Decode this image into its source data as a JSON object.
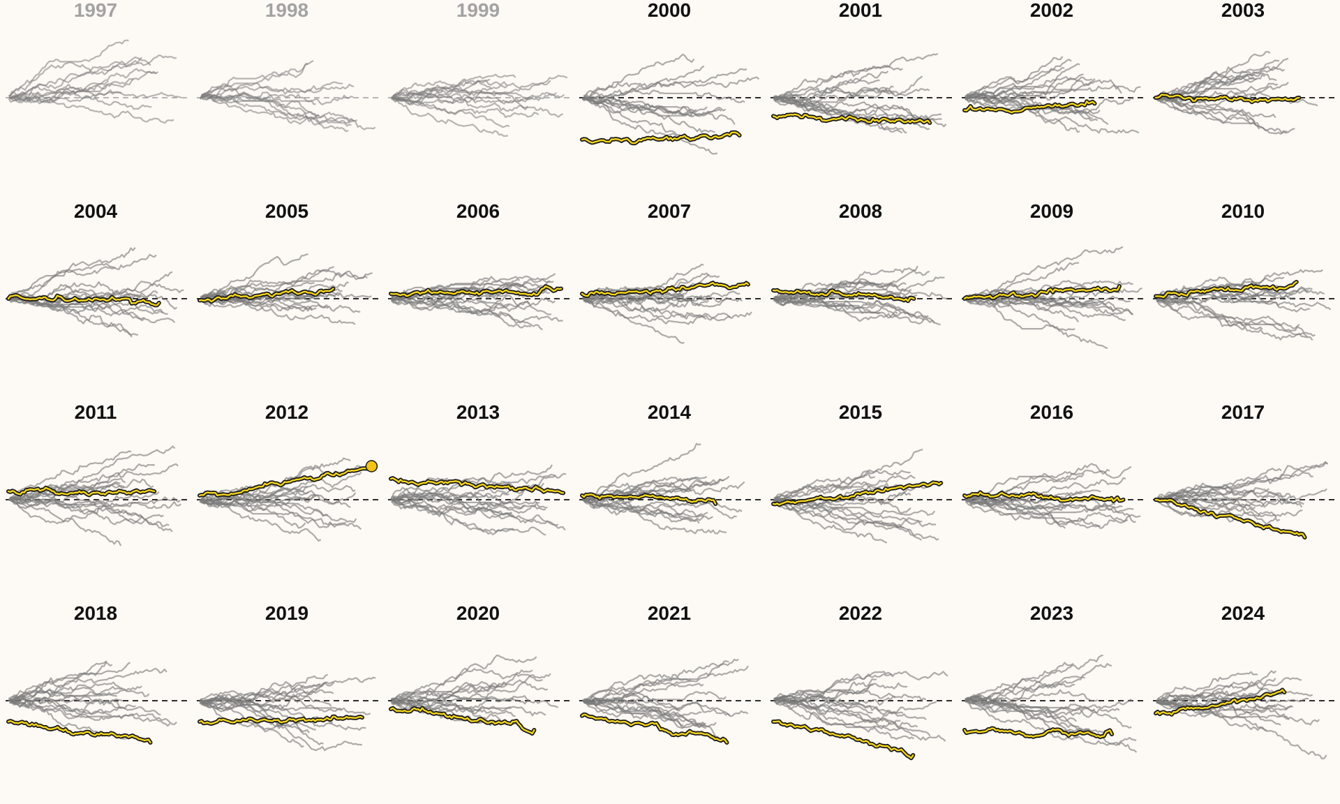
{
  "colors": {
    "background": "#fdf9f4",
    "title_active": "#111111",
    "title_inactive": "#a3a3a3",
    "trace": "#7b7b7b",
    "highlight_fill": "#f4d51a",
    "highlight_outline": "#1a1a1a",
    "baseline": "#2b2b2b"
  },
  "chart_data": {
    "type": "line",
    "layout": "small-multiples 7 columns x 4 rows",
    "grid": false,
    "baseline": 0,
    "panels": [
      {
        "title": "1997",
        "active": false,
        "n_traces": 12,
        "y0": 0,
        "end": null
      },
      {
        "title": "1998",
        "active": false,
        "n_traces": 12,
        "y0": 0,
        "end": null
      },
      {
        "title": "1999",
        "active": false,
        "n_traces": 14,
        "y0": 0,
        "end": null
      },
      {
        "title": "2000",
        "active": true,
        "n_traces": 14,
        "y0": -0.5,
        "end": -0.45
      },
      {
        "title": "2001",
        "active": true,
        "n_traces": 16,
        "y0": -0.22,
        "end": -0.3
      },
      {
        "title": "2002",
        "active": true,
        "n_traces": 16,
        "y0": -0.15,
        "end": -0.07
      },
      {
        "title": "2003",
        "active": true,
        "n_traces": 16,
        "y0": 0.0,
        "end": 0.0
      },
      {
        "title": "2004",
        "active": true,
        "n_traces": 16,
        "y0": 0.0,
        "end": -0.05
      },
      {
        "title": "2005",
        "active": true,
        "n_traces": 16,
        "y0": -0.02,
        "end": 0.12
      },
      {
        "title": "2006",
        "active": true,
        "n_traces": 16,
        "y0": 0.06,
        "end": 0.12
      },
      {
        "title": "2007",
        "active": true,
        "n_traces": 16,
        "y0": 0.06,
        "end": 0.17
      },
      {
        "title": "2008",
        "active": true,
        "n_traces": 16,
        "y0": 0.1,
        "end": 0.0
      },
      {
        "title": "2009",
        "active": true,
        "n_traces": 16,
        "y0": 0.0,
        "end": 0.15
      },
      {
        "title": "2010",
        "active": true,
        "n_traces": 16,
        "y0": 0.03,
        "end": 0.2
      },
      {
        "title": "2011",
        "active": true,
        "n_traces": 16,
        "y0": 0.1,
        "end": 0.1
      },
      {
        "title": "2012",
        "active": true,
        "n_traces": 16,
        "y0": 0.05,
        "end": 0.4
      },
      {
        "title": "2013",
        "active": true,
        "n_traces": 16,
        "y0": 0.25,
        "end": 0.08
      },
      {
        "title": "2014",
        "active": true,
        "n_traces": 16,
        "y0": 0.05,
        "end": -0.05
      },
      {
        "title": "2015",
        "active": true,
        "n_traces": 16,
        "y0": -0.05,
        "end": 0.2
      },
      {
        "title": "2016",
        "active": true,
        "n_traces": 16,
        "y0": 0.05,
        "end": 0.0
      },
      {
        "title": "2017",
        "active": true,
        "n_traces": 16,
        "y0": 0.0,
        "end": -0.45
      },
      {
        "title": "2018",
        "active": true,
        "n_traces": 16,
        "y0": -0.25,
        "end": -0.5
      },
      {
        "title": "2019",
        "active": true,
        "n_traces": 16,
        "y0": -0.25,
        "end": -0.2
      },
      {
        "title": "2020",
        "active": true,
        "n_traces": 16,
        "y0": -0.1,
        "end": -0.35
      },
      {
        "title": "2021",
        "active": true,
        "n_traces": 16,
        "y0": -0.18,
        "end": -0.5
      },
      {
        "title": "2022",
        "active": true,
        "n_traces": 16,
        "y0": -0.25,
        "end": -0.65
      },
      {
        "title": "2023",
        "active": true,
        "n_traces": 16,
        "y0": -0.35,
        "end": -0.4
      },
      {
        "title": "2024",
        "active": true,
        "n_traces": 16,
        "y0": -0.15,
        "end": 0.1
      }
    ]
  }
}
